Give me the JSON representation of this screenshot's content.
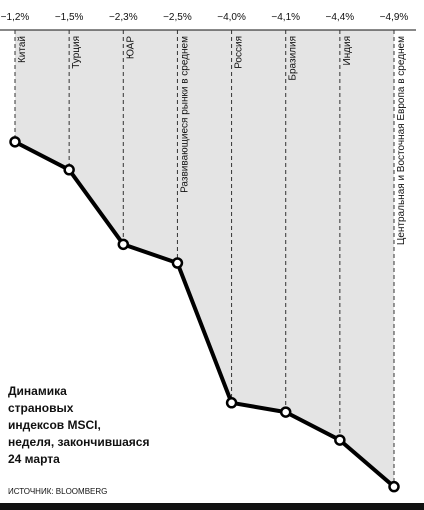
{
  "chart_data": {
    "type": "line",
    "title_lines": [
      "Динамика",
      "страновых",
      "индексов MSCI,",
      "неделя, закончившаяся",
      "24 марта"
    ],
    "source": "ИСТОЧНИК: BLOOMBERG",
    "categories": [
      "Китай",
      "Турция",
      "ЮАР",
      "Развивающиеся рынки в среднем",
      "Россия",
      "Бразилия",
      "Индия",
      "Центральная и Восточная Европа в среднем"
    ],
    "values": [
      -1.2,
      -1.5,
      -2.3,
      -2.5,
      -4.0,
      -4.1,
      -4.4,
      -4.9
    ],
    "value_labels": [
      "−1,2%",
      "−1,5%",
      "−2,3%",
      "−2,5%",
      "−4,0%",
      "−4,1%",
      "−4,4%",
      "−4,9%"
    ],
    "color": "#000000",
    "fill": "#e4e4e4",
    "ylim": [
      -5,
      0
    ]
  }
}
